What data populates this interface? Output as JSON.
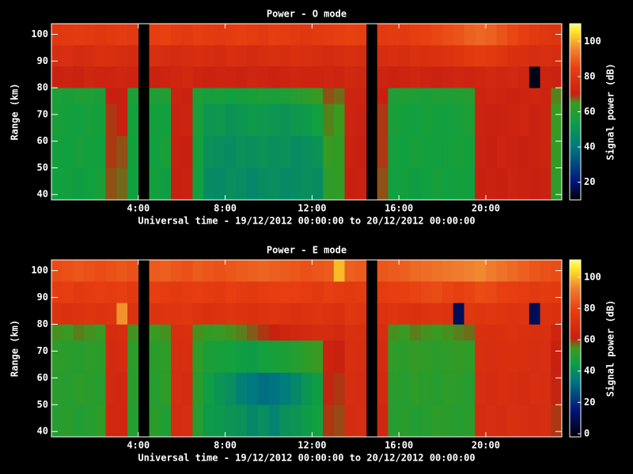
{
  "chart_data": [
    {
      "type": "heatmap",
      "title": "Power - O mode",
      "xlabel": "Universal time - 19/12/2012 00:00:00 to 20/12/2012 00:00:00",
      "ylabel": "Range (km)",
      "colorbar_label": "Signal power (dB)",
      "xlim": [
        0,
        23.5
      ],
      "ylim": [
        38,
        104
      ],
      "zlim": [
        10,
        110
      ],
      "xticks": [
        {
          "value": 4,
          "label": "4:00"
        },
        {
          "value": 8,
          "label": "8:00"
        },
        {
          "value": 12,
          "label": "12:00"
        },
        {
          "value": 16,
          "label": "16:00"
        },
        {
          "value": 20,
          "label": "20:00"
        }
      ],
      "yticks": [
        40,
        50,
        60,
        70,
        80,
        90,
        100
      ],
      "zticks": [
        20,
        40,
        60,
        80,
        100
      ],
      "colormap": [
        [
          0,
          "#000000"
        ],
        [
          0.1,
          "#00147a"
        ],
        [
          0.3,
          "#007a80"
        ],
        [
          0.45,
          "#10a040"
        ],
        [
          0.55,
          "#3a9a20"
        ],
        [
          0.6,
          "#c82010"
        ],
        [
          0.75,
          "#e84010"
        ],
        [
          0.85,
          "#f08030"
        ],
        [
          0.95,
          "#ffe020"
        ],
        [
          1,
          "#ffff70"
        ]
      ],
      "xbins": [
        0,
        0.5,
        1,
        1.5,
        2,
        2.5,
        3,
        3.5,
        4,
        4.5,
        5,
        5.5,
        6,
        6.5,
        7,
        7.5,
        8,
        8.5,
        9,
        9.5,
        10,
        10.5,
        11,
        11.5,
        12,
        12.5,
        13,
        13.5,
        14,
        14.5,
        15,
        15.5,
        16,
        16.5,
        17,
        17.5,
        18,
        18.5,
        19,
        19.5,
        20,
        20.5,
        21,
        21.5,
        22,
        22.5,
        23,
        23.5
      ],
      "ybins": [
        38,
        50,
        62,
        74,
        80,
        88,
        96,
        104
      ],
      "values": [
        [
          55,
          56,
          54,
          55,
          57,
          68,
          67,
          55,
          null,
          56,
          54,
          70,
          71,
          55,
          47,
          46,
          48,
          47,
          45,
          47,
          48,
          46,
          47,
          48,
          47,
          62,
          63,
          70,
          71,
          null,
          68,
          55,
          56,
          54,
          55,
          57,
          55,
          56,
          55,
          70,
          71,
          70,
          72,
          71,
          70,
          71,
          62
        ],
        [
          56,
          55,
          57,
          56,
          55,
          69,
          68,
          56,
          null,
          55,
          57,
          71,
          70,
          56,
          49,
          48,
          47,
          49,
          48,
          50,
          48,
          49,
          47,
          48,
          50,
          64,
          63,
          71,
          70,
          null,
          69,
          56,
          55,
          57,
          56,
          55,
          56,
          57,
          56,
          71,
          70,
          72,
          71,
          70,
          71,
          72,
          63
        ],
        [
          57,
          56,
          55,
          57,
          56,
          69,
          70,
          56,
          null,
          56,
          55,
          71,
          72,
          57,
          51,
          52,
          50,
          51,
          53,
          52,
          51,
          50,
          52,
          53,
          55,
          66,
          65,
          72,
          71,
          null,
          69,
          57,
          56,
          55,
          57,
          56,
          55,
          57,
          58,
          72,
          71,
          71,
          72,
          73,
          71,
          72,
          64
        ],
        [
          58,
          57,
          59,
          58,
          57,
          70,
          70,
          58,
          null,
          58,
          59,
          72,
          71,
          58,
          56,
          57,
          55,
          56,
          57,
          58,
          57,
          58,
          60,
          62,
          64,
          68,
          67,
          72,
          72,
          null,
          70,
          58,
          59,
          58,
          57,
          59,
          58,
          59,
          60,
          72,
          73,
          72,
          71,
          72,
          73,
          72,
          66
        ],
        [
          71,
          72,
          71,
          73,
          72,
          72,
          73,
          72,
          null,
          71,
          72,
          73,
          74,
          72,
          71,
          72,
          72,
          71,
          73,
          72,
          71,
          72,
          73,
          72,
          72,
          73,
          72,
          74,
          73,
          null,
          72,
          71,
          72,
          73,
          72,
          71,
          72,
          73,
          72,
          73,
          74,
          73,
          74,
          73,
          12,
          72,
          71
        ],
        [
          76,
          77,
          75,
          76,
          78,
          77,
          76,
          75,
          null,
          77,
          76,
          75,
          76,
          77,
          76,
          75,
          77,
          76,
          75,
          76,
          77,
          76,
          78,
          77,
          76,
          75,
          76,
          77,
          76,
          null,
          76,
          77,
          76,
          78,
          77,
          78,
          79,
          80,
          82,
          83,
          82,
          80,
          78,
          77,
          76,
          77,
          76
        ],
        [
          81,
          82,
          83,
          82,
          81,
          82,
          83,
          82,
          null,
          84,
          85,
          83,
          82,
          84,
          83,
          82,
          83,
          84,
          83,
          82,
          84,
          83,
          82,
          81,
          82,
          83,
          84,
          85,
          84,
          null,
          82,
          83,
          82,
          84,
          85,
          86,
          87,
          88,
          90,
          91,
          90,
          88,
          86,
          84,
          82,
          81,
          80
        ]
      ]
    },
    {
      "type": "heatmap",
      "title": "Power - E mode",
      "xlabel": "Universal time - 19/12/2012 00:00:00 to 20/12/2012 00:00:00",
      "ylabel": "Range (km)",
      "colorbar_label": "Signal power (dB)",
      "xlim": [
        0,
        23.5
      ],
      "ylim": [
        38,
        104
      ],
      "zlim": [
        -2,
        111
      ],
      "xticks": [
        {
          "value": 4,
          "label": "4:00"
        },
        {
          "value": 8,
          "label": "8:00"
        },
        {
          "value": 12,
          "label": "12:00"
        },
        {
          "value": 16,
          "label": "16:00"
        },
        {
          "value": 20,
          "label": "20:00"
        }
      ],
      "yticks": [
        40,
        50,
        60,
        70,
        80,
        90,
        100
      ],
      "zticks": [
        0,
        20,
        40,
        60,
        80,
        100
      ],
      "colormap": [
        [
          0,
          "#000000"
        ],
        [
          0.15,
          "#00147a"
        ],
        [
          0.32,
          "#007a80"
        ],
        [
          0.42,
          "#10a040"
        ],
        [
          0.5,
          "#3a9a20"
        ],
        [
          0.56,
          "#c82010"
        ],
        [
          0.72,
          "#e84010"
        ],
        [
          0.84,
          "#f08030"
        ],
        [
          0.94,
          "#ffe020"
        ],
        [
          1,
          "#ffff70"
        ]
      ],
      "xbins": [
        0,
        0.5,
        1,
        1.5,
        2,
        2.5,
        3,
        3.5,
        4,
        4.5,
        5,
        5.5,
        6,
        6.5,
        7,
        7.5,
        8,
        8.5,
        9,
        9.5,
        10,
        10.5,
        11,
        11.5,
        12,
        12.5,
        13,
        13.5,
        14,
        14.5,
        15,
        15.5,
        16,
        16.5,
        17,
        17.5,
        18,
        18.5,
        19,
        19.5,
        20,
        20.5,
        21,
        21.5,
        22,
        22.5,
        23,
        23.5
      ],
      "ybins": [
        38,
        50,
        62,
        74,
        80,
        88,
        96,
        104
      ],
      "values": [
        [
          50,
          51,
          49,
          50,
          52,
          66,
          65,
          50,
          null,
          51,
          49,
          68,
          69,
          50,
          44,
          43,
          42,
          41,
          38,
          40,
          37,
          41,
          42,
          44,
          46,
          60,
          59,
          68,
          69,
          null,
          66,
          50,
          51,
          49,
          50,
          52,
          51,
          50,
          51,
          68,
          69,
          68,
          70,
          69,
          68,
          69,
          60
        ],
        [
          51,
          50,
          52,
          51,
          50,
          67,
          66,
          51,
          null,
          50,
          52,
          69,
          68,
          51,
          45,
          42,
          40,
          36,
          34,
          32,
          33,
          35,
          38,
          42,
          45,
          61,
          60,
          69,
          68,
          null,
          67,
          51,
          50,
          52,
          51,
          50,
          52,
          51,
          50,
          69,
          68,
          70,
          69,
          68,
          70,
          69,
          61
        ],
        [
          52,
          51,
          50,
          52,
          51,
          67,
          68,
          52,
          null,
          51,
          52,
          69,
          70,
          52,
          48,
          47,
          46,
          45,
          44,
          46,
          47,
          48,
          50,
          52,
          54,
          63,
          62,
          70,
          69,
          null,
          68,
          52,
          51,
          53,
          52,
          51,
          52,
          53,
          52,
          70,
          69,
          70,
          71,
          70,
          69,
          70,
          62
        ],
        [
          55,
          54,
          56,
          55,
          54,
          68,
          69,
          55,
          null,
          54,
          55,
          70,
          71,
          55,
          53,
          54,
          55,
          56,
          58,
          60,
          62,
          64,
          66,
          67,
          68,
          68,
          67,
          71,
          70,
          null,
          69,
          55,
          54,
          56,
          55,
          54,
          55,
          56,
          57,
          71,
          70,
          71,
          72,
          71,
          70,
          71,
          64
        ],
        [
          72,
          71,
          72,
          73,
          72,
          73,
          95,
          72,
          null,
          72,
          73,
          73,
          74,
          72,
          71,
          72,
          73,
          72,
          71,
          72,
          73,
          72,
          71,
          72,
          73,
          72,
          71,
          74,
          73,
          null,
          72,
          73,
          72,
          71,
          72,
          73,
          72,
          10,
          74,
          73,
          74,
          73,
          72,
          73,
          10,
          72,
          71
        ],
        [
          77,
          78,
          76,
          77,
          78,
          77,
          78,
          76,
          null,
          78,
          77,
          76,
          77,
          78,
          77,
          76,
          78,
          77,
          76,
          77,
          78,
          79,
          78,
          77,
          76,
          78,
          77,
          76,
          77,
          null,
          77,
          78,
          79,
          80,
          81,
          82,
          80,
          79,
          80,
          82,
          81,
          79,
          78,
          77,
          76,
          77,
          76
        ],
        [
          82,
          83,
          84,
          83,
          82,
          83,
          84,
          83,
          null,
          85,
          86,
          84,
          83,
          85,
          84,
          83,
          84,
          85,
          86,
          87,
          86,
          85,
          84,
          83,
          84,
          85,
          100,
          86,
          85,
          null,
          84,
          85,
          86,
          88,
          89,
          90,
          91,
          92,
          93,
          94,
          92,
          90,
          88,
          86,
          84,
          83,
          82
        ]
      ]
    }
  ]
}
